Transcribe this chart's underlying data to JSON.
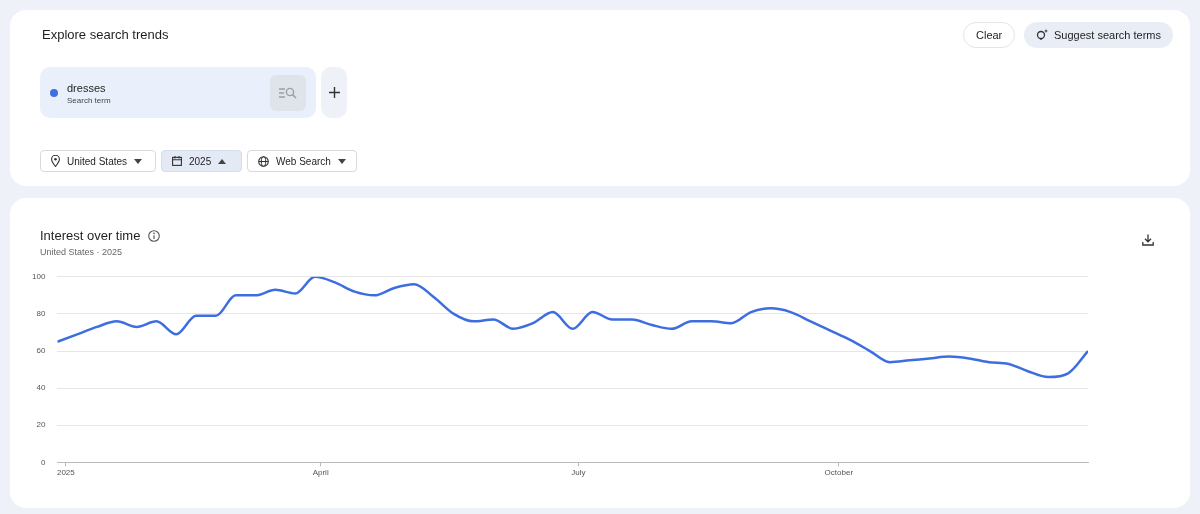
{
  "chart_data": {
    "type": "line",
    "title": "Interest over time",
    "subtitle": "United States · 2025",
    "annotations": [
      "Explore search trends",
      "Clear",
      "Suggest search terms",
      "Search term",
      "United States",
      "2025",
      "Web Search"
    ],
    "x": [
      "2024-12-29",
      "2025-01-05",
      "2025-01-12",
      "2025-01-19",
      "2025-01-26",
      "2025-02-02",
      "2025-02-09",
      "2025-02-16",
      "2025-02-23",
      "2025-03-02",
      "2025-03-09",
      "2025-03-16",
      "2025-03-23",
      "2025-03-30",
      "2025-04-06",
      "2025-04-13",
      "2025-04-20",
      "2025-04-27",
      "2025-05-04",
      "2025-05-11",
      "2025-05-18",
      "2025-05-25",
      "2025-06-01",
      "2025-06-08",
      "2025-06-15",
      "2025-06-22",
      "2025-06-29",
      "2025-07-06",
      "2025-07-13",
      "2025-07-20",
      "2025-07-27",
      "2025-08-03",
      "2025-08-10",
      "2025-08-17",
      "2025-08-24",
      "2025-08-31",
      "2025-09-07",
      "2025-09-14",
      "2025-09-21",
      "2025-09-28",
      "2025-10-05",
      "2025-10-12",
      "2025-10-19",
      "2025-10-26",
      "2025-11-02",
      "2025-11-09",
      "2025-11-16",
      "2025-11-23",
      "2025-11-30",
      "2025-12-07",
      "2025-12-14",
      "2025-12-21",
      "2025-12-28"
    ],
    "series": [
      {
        "name": "dresses",
        "color": "#3d6ee0",
        "values": [
          65,
          69,
          73,
          76,
          73,
          76,
          69,
          79,
          79,
          90,
          90,
          93,
          91,
          100,
          97,
          92,
          90,
          94,
          96,
          89,
          80,
          76,
          77,
          72,
          75,
          81,
          72,
          81,
          77,
          77,
          74,
          72,
          76,
          76,
          75,
          81,
          83,
          81,
          76,
          71,
          66,
          60,
          54,
          55,
          56,
          57,
          56,
          54,
          53,
          49,
          46,
          48,
          60
        ]
      }
    ],
    "xlim": [
      "2024-12-29",
      "2025-12-28"
    ],
    "xticks": [
      {
        "value": "2025-01-01",
        "label": "2025"
      },
      {
        "value": "2025-04-01",
        "label": "April"
      },
      {
        "value": "2025-07-01",
        "label": "July"
      },
      {
        "value": "2025-10-01",
        "label": "October"
      }
    ],
    "ylim": [
      0,
      100
    ],
    "yticks": [
      0,
      20,
      40,
      60,
      80,
      100
    ],
    "grid": "y",
    "legend": "top left",
    "marker": "none",
    "line_style": "solid"
  }
}
